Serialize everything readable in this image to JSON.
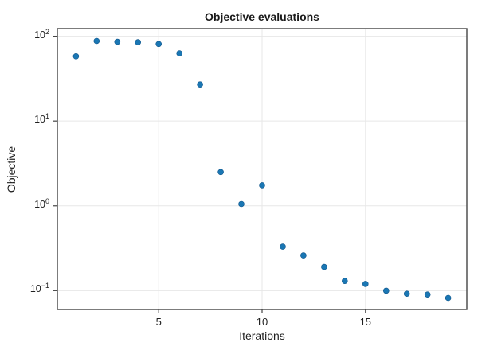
{
  "chart_data": {
    "type": "scatter",
    "title": "Objective evaluations",
    "xlabel": "Iterations",
    "ylabel": "Objective",
    "yscale": "log10",
    "grid": true,
    "legend": false,
    "x": [
      1,
      2,
      3,
      4,
      5,
      6,
      7,
      8,
      9,
      10,
      11,
      12,
      13,
      14,
      15,
      16,
      17,
      18,
      19
    ],
    "y": [
      58,
      88,
      86,
      85,
      81,
      63,
      27,
      2.5,
      1.05,
      1.75,
      0.33,
      0.26,
      0.19,
      0.13,
      0.12,
      0.1,
      0.092,
      0.09,
      0.082
    ],
    "xlim": [
      0.1,
      19.9
    ],
    "ylim": [
      0.06,
      123
    ],
    "xticks": [
      {
        "value": 5,
        "label": "5"
      },
      {
        "value": 10,
        "label": "10"
      },
      {
        "value": 15,
        "label": "15"
      }
    ],
    "yticks": [
      {
        "value": 100,
        "base": "10",
        "exp": "2"
      },
      {
        "value": 10,
        "base": "10",
        "exp": "1"
      },
      {
        "value": 1,
        "base": "10",
        "exp": "0"
      },
      {
        "value": 0.1,
        "base": "10",
        "exp": "−1"
      }
    ],
    "colors": {
      "marker": "#1a77b4",
      "marker_edge": "#10558a",
      "spine": "#454545",
      "grid": "#e7e7e7",
      "text": "#1f1f1f"
    }
  }
}
